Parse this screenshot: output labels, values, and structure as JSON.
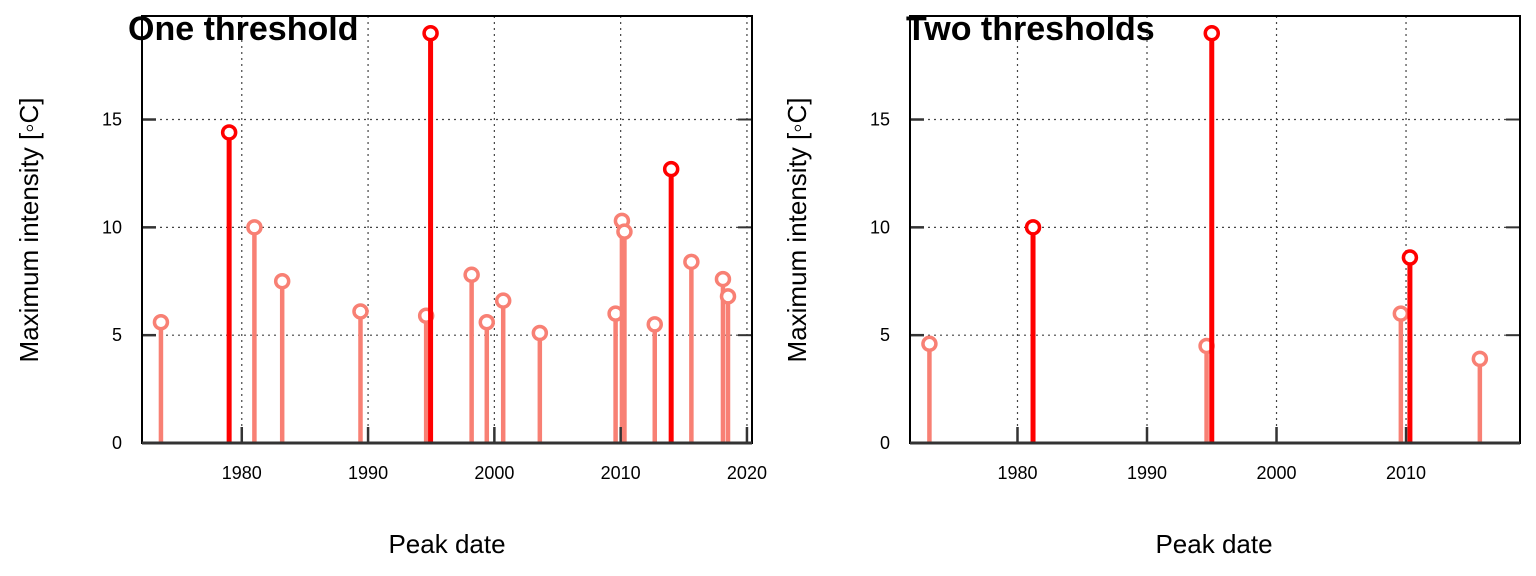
{
  "colors": {
    "minor": "#f88074",
    "major": "#ff0000",
    "grid": "#444444",
    "axis": "#000000"
  },
  "chart_data": [
    {
      "type": "stem",
      "title": "One threshold",
      "xlabel": "Peak date",
      "ylabel": "Maximum intensity [◦C]",
      "x_ticks": [
        "1980",
        "1990",
        "2000",
        "2010",
        "2020"
      ],
      "y_ticks": [
        "0",
        "5",
        "10",
        "15"
      ],
      "xlim": [
        1972.1,
        2020.4
      ],
      "ylim": [
        0,
        19.8
      ],
      "grid": true,
      "points": [
        {
          "x": 1973.6,
          "y": 5.6,
          "major": false
        },
        {
          "x": 1979.0,
          "y": 14.4,
          "major": true
        },
        {
          "x": 1981.0,
          "y": 10.0,
          "major": false
        },
        {
          "x": 1983.2,
          "y": 7.5,
          "major": false
        },
        {
          "x": 1989.4,
          "y": 6.1,
          "major": false
        },
        {
          "x": 1994.6,
          "y": 5.9,
          "major": false
        },
        {
          "x": 1994.95,
          "y": 19.0,
          "major": true
        },
        {
          "x": 1998.2,
          "y": 7.8,
          "major": false
        },
        {
          "x": 1999.4,
          "y": 5.6,
          "major": false
        },
        {
          "x": 2000.7,
          "y": 6.6,
          "major": false
        },
        {
          "x": 2003.6,
          "y": 5.1,
          "major": false
        },
        {
          "x": 2009.6,
          "y": 6.0,
          "major": false
        },
        {
          "x": 2010.1,
          "y": 10.3,
          "major": false
        },
        {
          "x": 2010.3,
          "y": 9.8,
          "major": false
        },
        {
          "x": 2012.7,
          "y": 5.5,
          "major": false
        },
        {
          "x": 2014.0,
          "y": 12.7,
          "major": true
        },
        {
          "x": 2015.6,
          "y": 8.4,
          "major": false
        },
        {
          "x": 2018.1,
          "y": 7.6,
          "major": false
        },
        {
          "x": 2018.5,
          "y": 6.8,
          "major": false
        }
      ]
    },
    {
      "type": "stem",
      "title": "Two thresholds",
      "xlabel": "Peak date",
      "ylabel": "Maximum intensity [◦C]",
      "x_ticks": [
        "1980",
        "1990",
        "2000",
        "2010"
      ],
      "y_ticks": [
        "0",
        "5",
        "10",
        "15"
      ],
      "xlim": [
        1971.7,
        2018.8
      ],
      "ylim": [
        0,
        19.8
      ],
      "grid": true,
      "points": [
        {
          "x": 1973.2,
          "y": 4.6,
          "major": false
        },
        {
          "x": 1981.2,
          "y": 10.0,
          "major": true
        },
        {
          "x": 1994.6,
          "y": 4.5,
          "major": false
        },
        {
          "x": 1995.0,
          "y": 19.0,
          "major": true
        },
        {
          "x": 2009.6,
          "y": 6.0,
          "major": false
        },
        {
          "x": 2010.3,
          "y": 8.6,
          "major": true
        },
        {
          "x": 2015.7,
          "y": 3.9,
          "major": false
        }
      ]
    }
  ]
}
